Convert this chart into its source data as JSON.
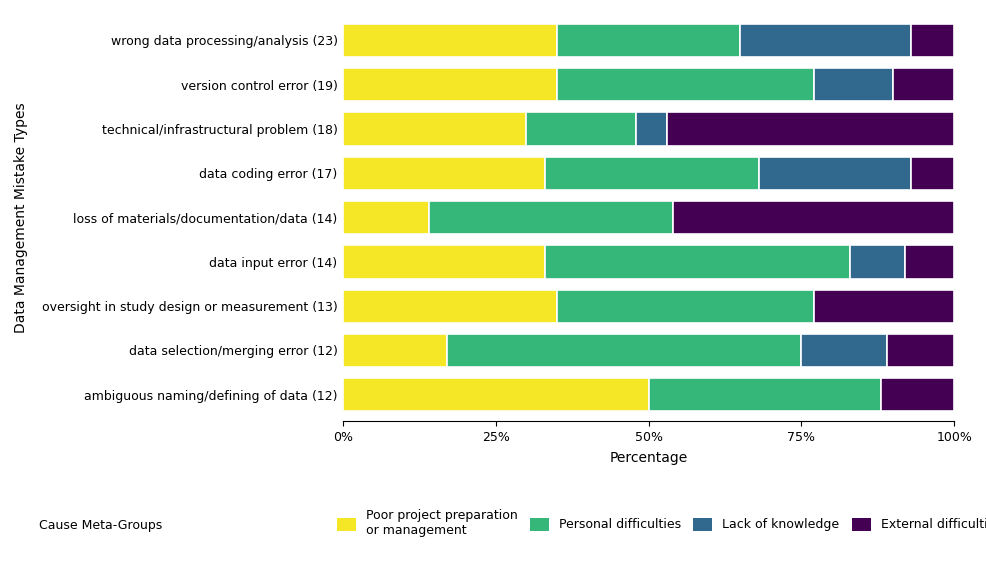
{
  "categories": [
    "wrong data processing/analysis (23)",
    "version control error (19)",
    "technical/infrastructural problem (18)",
    "data coding error (17)",
    "loss of materials/documentation/data (14)",
    "data input error (14)",
    "oversight in study design or measurement (13)",
    "data selection/merging error (12)",
    "ambiguous naming/defining of data (12)"
  ],
  "groups": [
    "Poor project preparation\nor management",
    "Personal difficulties",
    "Lack of knowledge",
    "External difficulties"
  ],
  "colors": [
    "#f5e626",
    "#35b779",
    "#31688e",
    "#440154"
  ],
  "data": [
    [
      35.0,
      30.0,
      28.0,
      7.0
    ],
    [
      35.0,
      42.0,
      13.0,
      10.0
    ],
    [
      30.0,
      18.0,
      5.0,
      47.0
    ],
    [
      33.0,
      35.0,
      25.0,
      7.0
    ],
    [
      14.0,
      40.0,
      0.0,
      46.0
    ],
    [
      33.0,
      50.0,
      9.0,
      8.0
    ],
    [
      35.0,
      42.0,
      0.0,
      23.0
    ],
    [
      17.0,
      58.0,
      14.0,
      11.0
    ],
    [
      50.0,
      38.0,
      0.0,
      12.0
    ]
  ],
  "xlabel": "Percentage",
  "ylabel": "Data Management Mistake Types",
  "legend_title": "Cause Meta-Groups",
  "xticks": [
    0,
    25,
    50,
    75,
    100
  ],
  "xticklabels": [
    "0%",
    "25%",
    "50%",
    "75%",
    "100%"
  ],
  "background_color": "#ffffff",
  "bar_height": 0.75,
  "figure_size": [
    9.86,
    5.77
  ]
}
